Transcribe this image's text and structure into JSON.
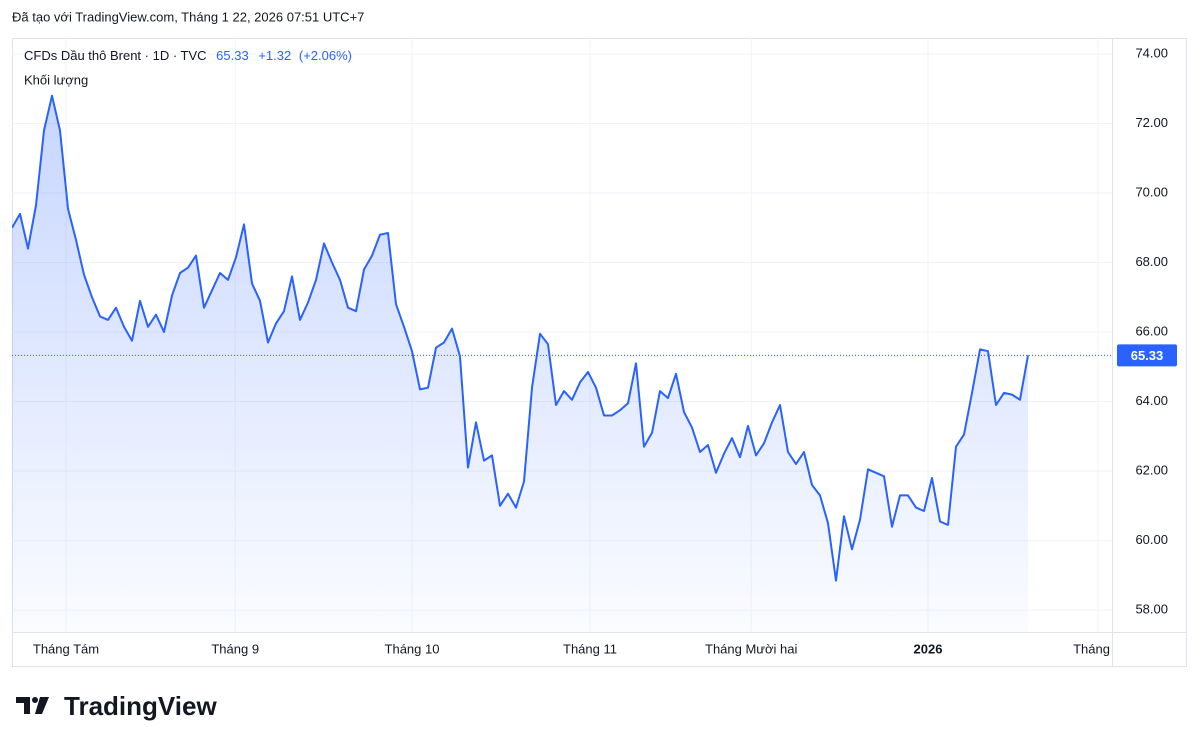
{
  "created_note": "Đã tạo với TradingView.com, Tháng 1 22, 2026 07:51 UTC+7",
  "brand": "TradingView",
  "chart_data": {
    "type": "line",
    "symbol": "CFDs Dầu thô Brent · 1D · TVC",
    "last_price": "65.33",
    "change": "+1.32",
    "change_pct": "(+2.06%)",
    "volume_label": "Khối lượng",
    "color": "#2962ff",
    "grid": true,
    "xlim": [
      0,
      137.5
    ],
    "ylim": [
      57.37,
      74.46
    ],
    "yticks": [
      {
        "value": 58,
        "label": "58.00"
      },
      {
        "value": 60,
        "label": "60.00"
      },
      {
        "value": 62,
        "label": "62.00"
      },
      {
        "value": 64,
        "label": "64.00"
      },
      {
        "value": 66,
        "label": "66.00"
      },
      {
        "value": 68,
        "label": "68.00"
      },
      {
        "value": 70,
        "label": "70.00"
      },
      {
        "value": 72,
        "label": "72.00"
      },
      {
        "value": 74,
        "label": "74.00"
      }
    ],
    "xticks": [
      {
        "value": 6.75,
        "label": "Tháng Tám"
      },
      {
        "value": 27.9,
        "label": "Tháng 9"
      },
      {
        "value": 50,
        "label": "Tháng 10"
      },
      {
        "value": 72.25,
        "label": "Tháng 11"
      },
      {
        "value": 92.4,
        "label": "Tháng Mười hai"
      },
      {
        "value": 114.5,
        "label": "2026"
      },
      {
        "value": 135.75,
        "label": "Tháng H"
      }
    ],
    "values": [
      69.0,
      69.4,
      68.4,
      69.65,
      71.8,
      72.8,
      71.8,
      69.55,
      68.65,
      67.65,
      67.0,
      66.45,
      66.35,
      66.7,
      66.15,
      65.75,
      66.9,
      66.15,
      66.5,
      66.0,
      67.05,
      67.7,
      67.85,
      68.2,
      66.7,
      67.2,
      67.7,
      67.5,
      68.15,
      69.1,
      67.4,
      66.9,
      65.7,
      66.25,
      66.6,
      67.6,
      66.35,
      66.85,
      67.5,
      68.55,
      68.0,
      67.5,
      66.7,
      66.6,
      67.8,
      68.2,
      68.8,
      68.85,
      66.8,
      66.15,
      65.45,
      64.35,
      64.4,
      65.55,
      65.7,
      66.1,
      65.3,
      62.1,
      63.4,
      62.3,
      62.45,
      61.0,
      61.35,
      60.95,
      61.7,
      64.4,
      65.95,
      65.65,
      63.9,
      64.3,
      64.05,
      64.55,
      64.85,
      64.4,
      63.6,
      63.6,
      63.75,
      63.95,
      65.1,
      62.7,
      63.1,
      64.3,
      64.1,
      64.8,
      63.7,
      63.25,
      62.55,
      62.75,
      61.95,
      62.5,
      62.95,
      62.4,
      63.3,
      62.45,
      62.8,
      63.4,
      63.9,
      62.55,
      62.2,
      62.55,
      61.6,
      61.3,
      60.5,
      58.85,
      60.7,
      59.75,
      60.6,
      62.05,
      61.95,
      61.85,
      60.4,
      61.3,
      61.3,
      60.95,
      60.85,
      61.8,
      60.55,
      60.45,
      62.7,
      63.05,
      64.25,
      65.5,
      65.45,
      63.9,
      64.25,
      64.2,
      64.05,
      65.33
    ]
  }
}
